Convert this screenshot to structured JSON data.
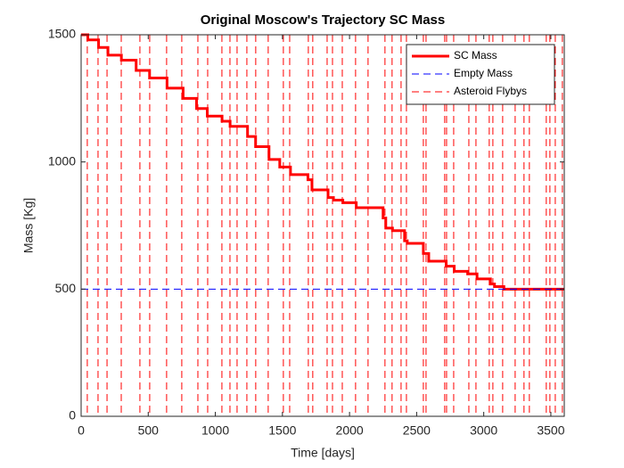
{
  "chart_data": {
    "type": "line",
    "title": "Original Moscow's Trajectory SC Mass",
    "x_label": "Time [days]",
    "y_label": "Mass [Kg]",
    "xlim": [
      0,
      3600
    ],
    "xticks": [
      0,
      500,
      1000,
      1500,
      2000,
      2500,
      3000,
      3500
    ],
    "ylim": [
      0,
      1500
    ],
    "yticks": [
      0,
      500,
      1000,
      1500
    ],
    "legend": "top-right",
    "series": [
      {
        "name": "SC Mass",
        "color": "#ff0000",
        "style": "solid",
        "x": [
          0,
          50,
          50,
          130,
          130,
          200,
          200,
          300,
          300,
          410,
          410,
          510,
          510,
          640,
          640,
          760,
          760,
          860,
          860,
          940,
          940,
          1050,
          1050,
          1110,
          1110,
          1240,
          1240,
          1300,
          1300,
          1400,
          1400,
          1480,
          1480,
          1560,
          1560,
          1690,
          1690,
          1720,
          1720,
          1840,
          1840,
          1880,
          1880,
          1950,
          1950,
          2050,
          2050,
          2250,
          2250,
          2270,
          2270,
          2320,
          2320,
          2410,
          2410,
          2430,
          2430,
          2550,
          2550,
          2590,
          2590,
          2720,
          2720,
          2780,
          2780,
          2880,
          2880,
          2950,
          2950,
          3050,
          3050,
          3080,
          3080,
          3150,
          3150,
          3600
        ],
        "values": [
          1500,
          1500,
          1480,
          1480,
          1450,
          1450,
          1420,
          1420,
          1400,
          1400,
          1360,
          1360,
          1330,
          1330,
          1290,
          1290,
          1250,
          1250,
          1210,
          1210,
          1180,
          1180,
          1160,
          1160,
          1140,
          1140,
          1100,
          1100,
          1060,
          1060,
          1010,
          1010,
          980,
          980,
          950,
          950,
          930,
          930,
          890,
          890,
          860,
          860,
          850,
          850,
          840,
          840,
          820,
          820,
          780,
          780,
          740,
          740,
          730,
          730,
          690,
          690,
          680,
          680,
          640,
          640,
          610,
          610,
          590,
          590,
          570,
          570,
          560,
          560,
          540,
          540,
          520,
          520,
          510,
          510,
          500,
          500
        ]
      },
      {
        "name": "Empty Mass",
        "color": "#0000ff",
        "style": "dashed",
        "x": [
          0,
          3600
        ],
        "values": [
          500,
          500
        ]
      },
      {
        "name": "Asteroid Flybys",
        "color": "#ff0000",
        "style": "dashed",
        "x": [
          46,
          126,
          193,
          299,
          438,
          511,
          637,
          750,
          870,
          943,
          1049,
          1109,
          1162,
          1235,
          1301,
          1394,
          1507,
          1554,
          1693,
          1726,
          1833,
          1873,
          1946,
          2045,
          2138,
          2264,
          2317,
          2384,
          2424,
          2550,
          2570,
          2709,
          2723,
          2776,
          2889,
          2942,
          3041,
          3068,
          3141,
          3234,
          3300,
          3340,
          3466,
          3493,
          3533,
          3586
        ]
      }
    ]
  }
}
